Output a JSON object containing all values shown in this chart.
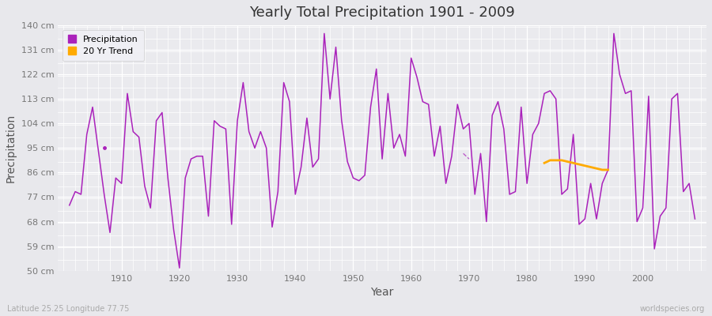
{
  "title": "Yearly Total Precipitation 1901 - 2009",
  "xlabel": "Year",
  "ylabel": "Precipitation",
  "footer_left": "Latitude 25.25 Longitude 77.75",
  "footer_right": "worldspecies.org",
  "bg_color": "#e8e8ec",
  "plot_bg_color": "#eaeaee",
  "grid_color": "#ffffff",
  "precip_color": "#aa22bb",
  "trend_color": "#ffaa00",
  "ylim": [
    50,
    140
  ],
  "yticks": [
    50,
    59,
    68,
    77,
    86,
    95,
    104,
    113,
    122,
    131,
    140
  ],
  "ytick_labels": [
    "50 cm",
    "59 cm",
    "68 cm",
    "77 cm",
    "86 cm",
    "95 cm",
    "104 cm",
    "113 cm",
    "122 cm",
    "131 cm",
    "140 cm"
  ],
  "xlim": [
    1899,
    2011
  ],
  "xticks": [
    1910,
    1920,
    1930,
    1940,
    1950,
    1960,
    1970,
    1980,
    1990,
    2000
  ],
  "years": [
    1901,
    1902,
    1903,
    1904,
    1905,
    1906,
    1907,
    1908,
    1909,
    1910,
    1911,
    1912,
    1913,
    1914,
    1915,
    1916,
    1917,
    1918,
    1919,
    1920,
    1921,
    1922,
    1923,
    1924,
    1925,
    1926,
    1927,
    1928,
    1929,
    1930,
    1931,
    1932,
    1933,
    1934,
    1935,
    1936,
    1937,
    1938,
    1939,
    1940,
    1941,
    1942,
    1943,
    1944,
    1945,
    1946,
    1947,
    1948,
    1949,
    1950,
    1951,
    1952,
    1953,
    1954,
    1955,
    1956,
    1957,
    1958,
    1959,
    1960,
    1961,
    1962,
    1963,
    1964,
    1965,
    1966,
    1967,
    1968,
    1969,
    1970,
    1971,
    1972,
    1973,
    1974,
    1975,
    1976,
    1977,
    1978,
    1979,
    1980,
    1981,
    1982,
    1983,
    1984,
    1985,
    1986,
    1987,
    1988,
    1989,
    1990,
    1991,
    1992,
    1993,
    1994,
    1995,
    1996,
    1997,
    1998,
    1999,
    2000,
    2001,
    2002,
    2003,
    2004,
    2005,
    2006,
    2007,
    2008,
    2009
  ],
  "precip": [
    74,
    79,
    78,
    100,
    110,
    94,
    78,
    64,
    84,
    82,
    115,
    101,
    99,
    81,
    73,
    105,
    108,
    84,
    65,
    51,
    84,
    91,
    92,
    92,
    70,
    105,
    103,
    102,
    67,
    105,
    119,
    101,
    95,
    101,
    95,
    66,
    79,
    119,
    112,
    78,
    88,
    106,
    88,
    91,
    137,
    113,
    132,
    105,
    90,
    84,
    83,
    85,
    110,
    124,
    91,
    115,
    95,
    100,
    92,
    128,
    121,
    112,
    111,
    92,
    103,
    82,
    92,
    111,
    102,
    104,
    78,
    93,
    68,
    107,
    112,
    102,
    78,
    79,
    110,
    82,
    100,
    104,
    115,
    116,
    113,
    78,
    80,
    100,
    67,
    69,
    82,
    69,
    82,
    87,
    137,
    122,
    115,
    116,
    68,
    73,
    114,
    58,
    70,
    73,
    113,
    115,
    79,
    82,
    69
  ],
  "isolated_dot_year": 1907,
  "isolated_dot_val": 95,
  "isolated_dash_years": [
    1969,
    1970
  ],
  "isolated_dash_vals": [
    93,
    91
  ],
  "trend_years": [
    1983,
    1984,
    1985,
    1986,
    1987,
    1988,
    1989,
    1990,
    1991,
    1992,
    1993,
    1994
  ],
  "trend_values": [
    89.5,
    90.5,
    90.5,
    90.5,
    90.0,
    89.5,
    89.0,
    88.5,
    88.0,
    87.5,
    87.0,
    87.0
  ]
}
